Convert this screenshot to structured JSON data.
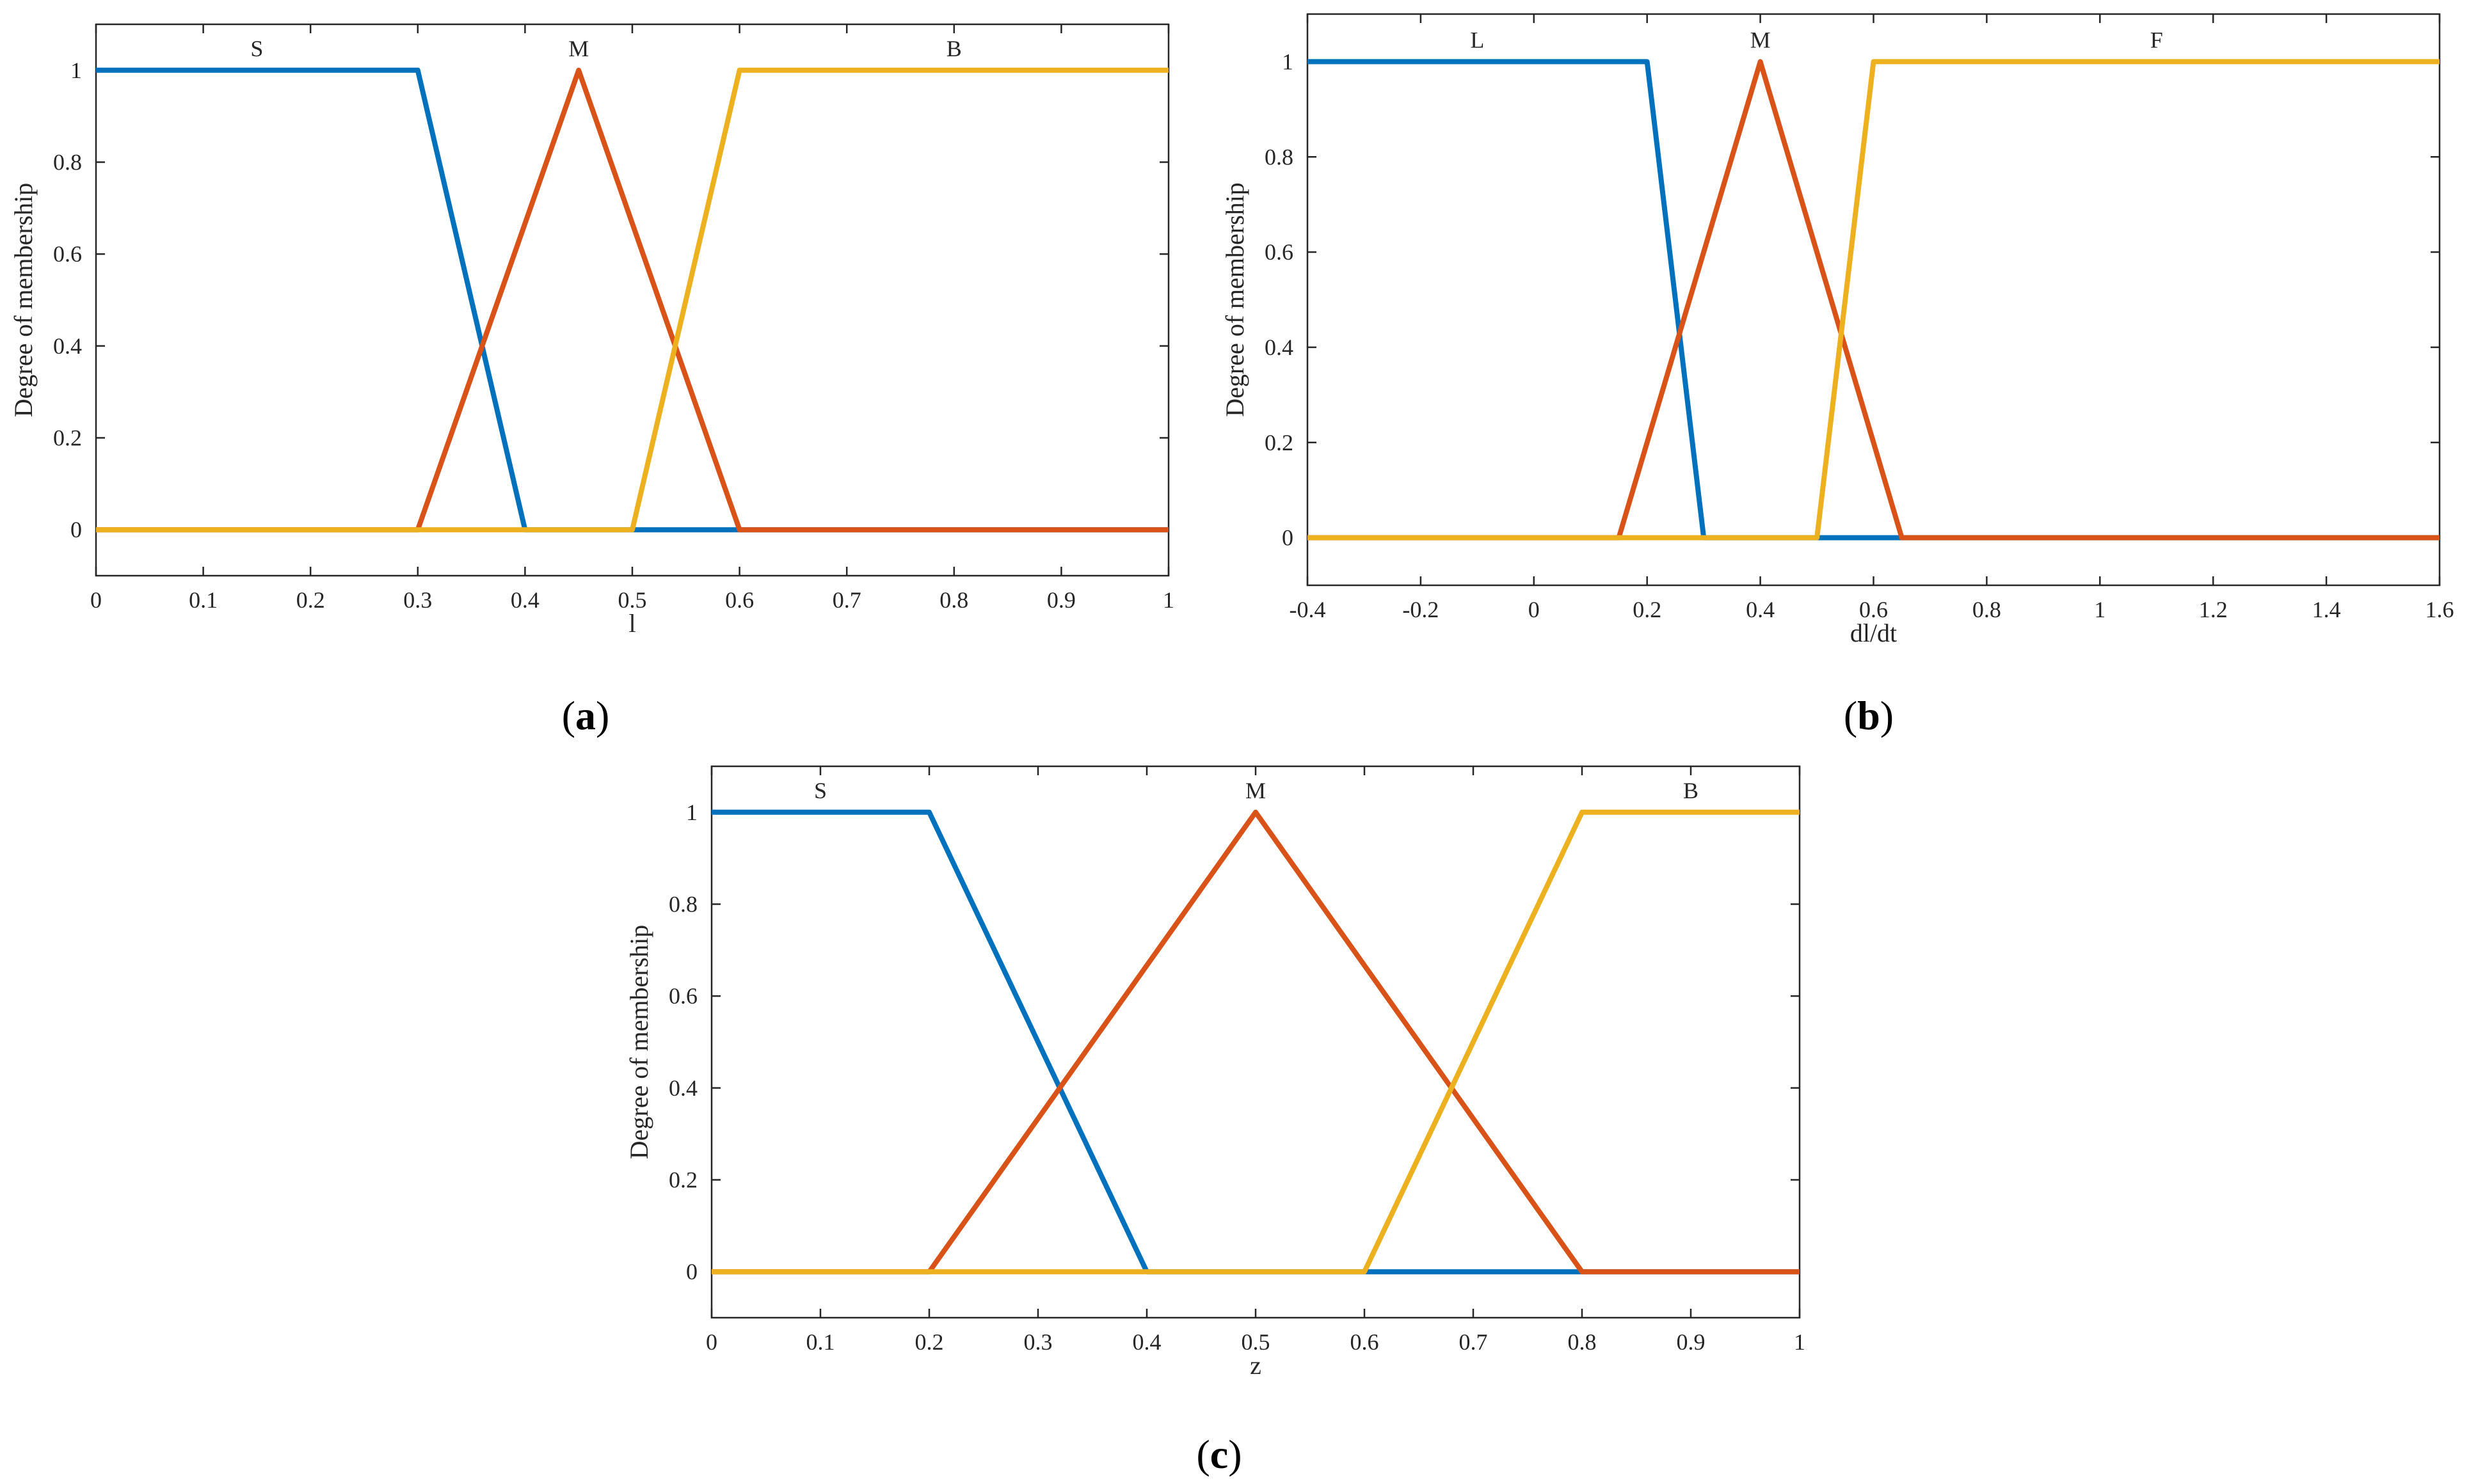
{
  "figure": {
    "panels": [
      "(a)",
      "(b)",
      "(c)"
    ]
  },
  "colors": {
    "series_1": "#0072BD",
    "series_2": "#D95319",
    "series_3": "#EDB120"
  },
  "chart_data": [
    {
      "type": "line",
      "panel": "(a)",
      "xlabel": "l",
      "ylabel": "Degree of membership",
      "xlim": [
        0,
        1
      ],
      "ylim": [
        -0.1,
        1.1
      ],
      "xticks": [
        0,
        0.1,
        0.2,
        0.3,
        0.4,
        0.5,
        0.6,
        0.7,
        0.8,
        0.9,
        1
      ],
      "xtick_labels": [
        "0",
        "0.1",
        "0.2",
        "0.3",
        "0.4",
        "0.5",
        "0.6",
        "0.7",
        "0.8",
        "0.9",
        "1"
      ],
      "yticks": [
        0,
        0.2,
        0.4,
        0.6,
        0.8,
        1
      ],
      "ytick_labels": [
        "0",
        "0.2",
        "0.4",
        "0.6",
        "0.8",
        "1"
      ],
      "grid": false,
      "series": [
        {
          "name": "S",
          "label_x": 0.15,
          "x": [
            0,
            0.3,
            0.4,
            1
          ],
          "y": [
            1,
            1,
            0,
            0
          ]
        },
        {
          "name": "M",
          "label_x": 0.45,
          "x": [
            0,
            0.3,
            0.45,
            0.6,
            1
          ],
          "y": [
            0,
            0,
            1,
            0,
            0
          ]
        },
        {
          "name": "B",
          "label_x": 0.8,
          "x": [
            0,
            0.5,
            0.6,
            1
          ],
          "y": [
            0,
            0,
            1,
            1
          ]
        }
      ]
    },
    {
      "type": "line",
      "panel": "(b)",
      "xlabel": "dl/dt",
      "ylabel": "Degree of membership",
      "xlim": [
        -0.4,
        1.6
      ],
      "ylim": [
        -0.1,
        1.1
      ],
      "xticks": [
        -0.4,
        -0.2,
        0,
        0.2,
        0.4,
        0.6,
        0.8,
        1,
        1.2,
        1.4,
        1.6
      ],
      "xtick_labels": [
        "-0.4",
        "-0.2",
        "0",
        "0.2",
        "0.4",
        "0.6",
        "0.8",
        "1",
        "1.2",
        "1.4",
        "1.6"
      ],
      "yticks": [
        0,
        0.2,
        0.4,
        0.6,
        0.8,
        1
      ],
      "ytick_labels": [
        "0",
        "0.2",
        "0.4",
        "0.6",
        "0.8",
        "1"
      ],
      "grid": false,
      "series": [
        {
          "name": "L",
          "label_x": -0.1,
          "x": [
            -0.4,
            0.2,
            0.3,
            1.6
          ],
          "y": [
            1,
            1,
            0,
            0
          ]
        },
        {
          "name": "M",
          "label_x": 0.4,
          "x": [
            -0.4,
            0.15,
            0.4,
            0.65,
            1.6
          ],
          "y": [
            0,
            0,
            1,
            0,
            0
          ]
        },
        {
          "name": "F",
          "label_x": 1.1,
          "x": [
            -0.4,
            0.5,
            0.6,
            1.6
          ],
          "y": [
            0,
            0,
            1,
            1
          ]
        }
      ]
    },
    {
      "type": "line",
      "panel": "(c)",
      "xlabel": "z",
      "ylabel": "Degree of membership",
      "xlim": [
        0,
        1
      ],
      "ylim": [
        -0.1,
        1.1
      ],
      "xticks": [
        0,
        0.1,
        0.2,
        0.3,
        0.4,
        0.5,
        0.6,
        0.7,
        0.8,
        0.9,
        1
      ],
      "xtick_labels": [
        "0",
        "0.1",
        "0.2",
        "0.3",
        "0.4",
        "0.5",
        "0.6",
        "0.7",
        "0.8",
        "0.9",
        "1"
      ],
      "yticks": [
        0,
        0.2,
        0.4,
        0.6,
        0.8,
        1
      ],
      "ytick_labels": [
        "0",
        "0.2",
        "0.4",
        "0.6",
        "0.8",
        "1"
      ],
      "grid": false,
      "series": [
        {
          "name": "S",
          "label_x": 0.1,
          "x": [
            0,
            0.2,
            0.4,
            1
          ],
          "y": [
            1,
            1,
            0,
            0
          ]
        },
        {
          "name": "M",
          "label_x": 0.5,
          "x": [
            0,
            0.2,
            0.5,
            0.8,
            1
          ],
          "y": [
            0,
            0,
            1,
            0,
            0
          ]
        },
        {
          "name": "B",
          "label_x": 0.9,
          "x": [
            0,
            0.6,
            0.8,
            1
          ],
          "y": [
            0,
            0,
            1,
            1
          ]
        }
      ]
    }
  ]
}
